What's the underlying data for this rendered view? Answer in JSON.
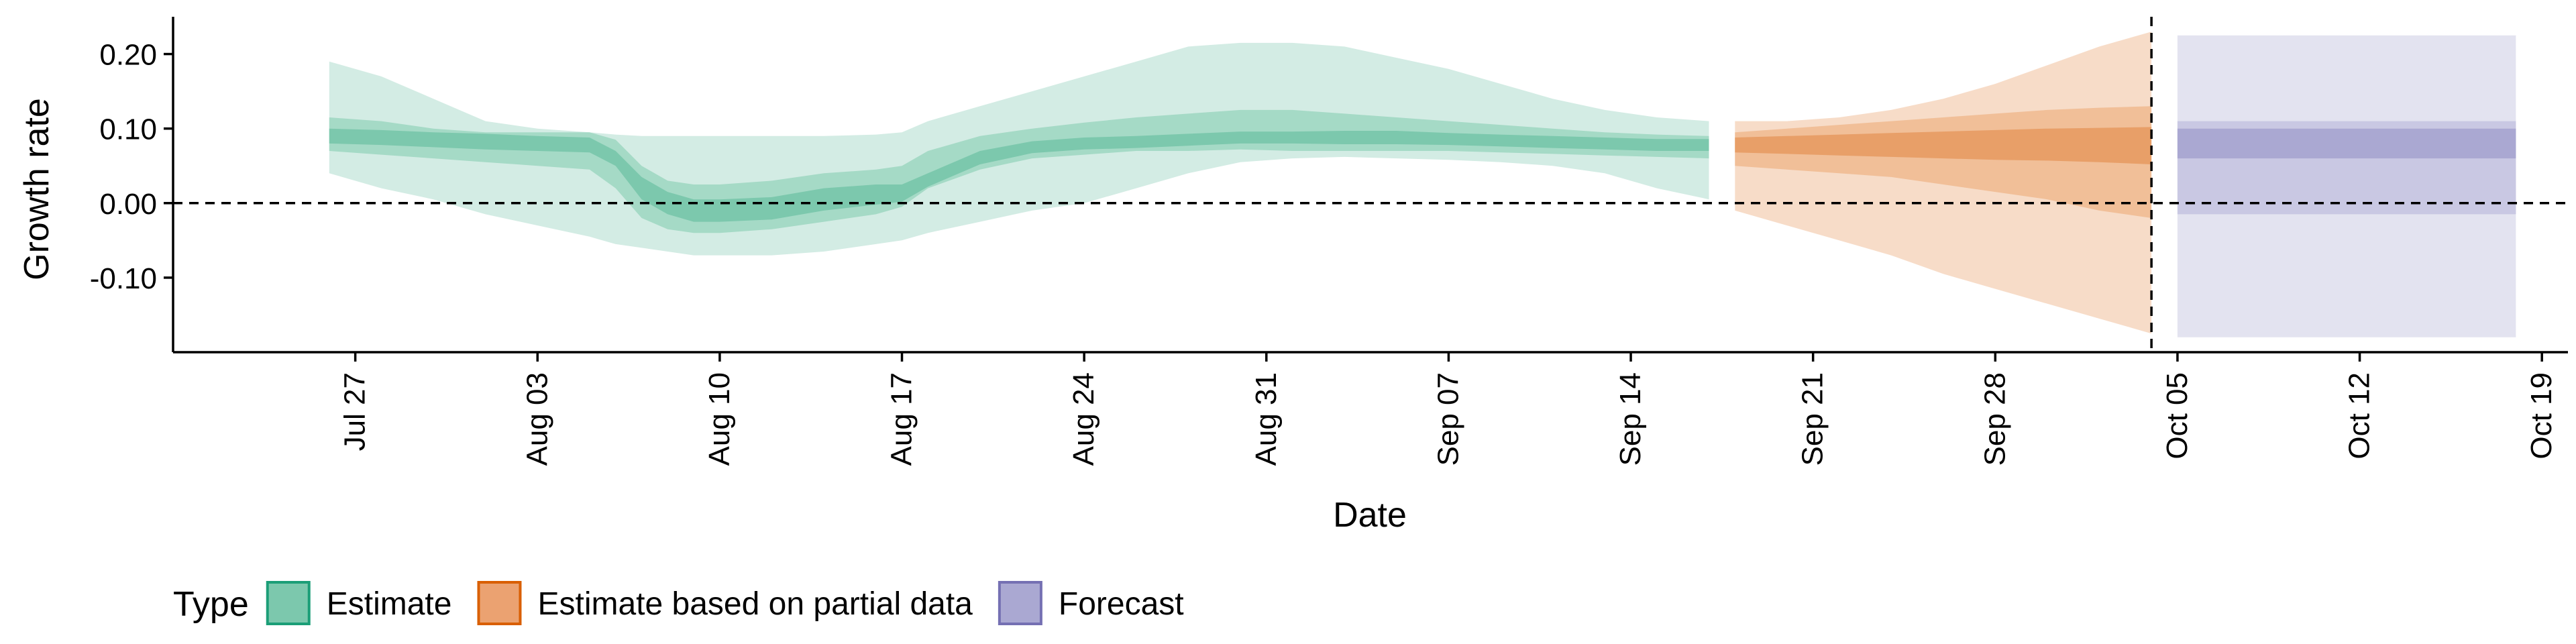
{
  "chart_data": {
    "type": "area",
    "title": "",
    "xlabel": "Date",
    "ylabel": "Growth rate",
    "x_range": [
      "2020-07-20",
      "2020-10-20"
    ],
    "ylim": [
      -0.2,
      0.25
    ],
    "yticks": [
      {
        "value": 0.2,
        "label": "0.20"
      },
      {
        "value": 0.1,
        "label": "0.10"
      },
      {
        "value": 0.0,
        "label": "0.00"
      },
      {
        "value": -0.1,
        "label": "-0.10"
      }
    ],
    "xticks": [
      {
        "date": "2020-07-27",
        "label": "Jul 27"
      },
      {
        "date": "2020-08-03",
        "label": "Aug 03"
      },
      {
        "date": "2020-08-10",
        "label": "Aug 10"
      },
      {
        "date": "2020-08-17",
        "label": "Aug 17"
      },
      {
        "date": "2020-08-24",
        "label": "Aug 24"
      },
      {
        "date": "2020-08-31",
        "label": "Aug 31"
      },
      {
        "date": "2020-09-07",
        "label": "Sep 07"
      },
      {
        "date": "2020-09-14",
        "label": "Sep 14"
      },
      {
        "date": "2020-09-21",
        "label": "Sep 21"
      },
      {
        "date": "2020-09-28",
        "label": "Sep 28"
      },
      {
        "date": "2020-10-05",
        "label": "Oct 05"
      },
      {
        "date": "2020-10-12",
        "label": "Oct 12"
      },
      {
        "date": "2020-10-19",
        "label": "Oct 19"
      }
    ],
    "reference_lines": {
      "horizontal_y": 0.0,
      "vertical_date": "2020-10-04"
    },
    "grid": false,
    "legend": {
      "title": "Type",
      "position": "bottom",
      "entries": [
        {
          "label": "Estimate",
          "fill": "#7cc8ad",
          "stroke": "#1b9e77"
        },
        {
          "label": "Estimate based on partial data",
          "fill": "#eba271",
          "stroke": "#d95f02"
        },
        {
          "label": "Forecast",
          "fill": "#aaa8d2",
          "stroke": "#7570b3"
        }
      ]
    },
    "series": [
      {
        "name": "Estimate",
        "color": "#1b9e77",
        "band_colors": [
          "#d3ece4",
          "#a5dac6",
          "#7cc8ad"
        ],
        "dates": [
          "2020-07-26",
          "2020-07-28",
          "2020-07-30",
          "2020-08-01",
          "2020-08-03",
          "2020-08-05",
          "2020-08-06",
          "2020-08-07",
          "2020-08-08",
          "2020-08-09",
          "2020-08-10",
          "2020-08-12",
          "2020-08-14",
          "2020-08-16",
          "2020-08-17",
          "2020-08-18",
          "2020-08-20",
          "2020-08-22",
          "2020-08-24",
          "2020-08-26",
          "2020-08-28",
          "2020-08-30",
          "2020-09-01",
          "2020-09-03",
          "2020-09-05",
          "2020-09-07",
          "2020-09-09",
          "2020-09-11",
          "2020-09-13",
          "2020-09-15",
          "2020-09-17"
        ],
        "median": [
          0.09,
          0.088,
          0.085,
          0.083,
          0.08,
          0.078,
          0.06,
          0.02,
          0.0,
          -0.01,
          -0.01,
          -0.008,
          0.005,
          0.01,
          0.012,
          0.03,
          0.06,
          0.075,
          0.08,
          0.082,
          0.085,
          0.088,
          0.088,
          0.088,
          0.088,
          0.086,
          0.084,
          0.082,
          0.08,
          0.078,
          0.078
        ],
        "lower_90": [
          0.04,
          0.02,
          0.005,
          -0.015,
          -0.03,
          -0.045,
          -0.055,
          -0.06,
          -0.065,
          -0.07,
          -0.07,
          -0.07,
          -0.065,
          -0.055,
          -0.05,
          -0.04,
          -0.025,
          -0.01,
          0.0,
          0.02,
          0.04,
          0.055,
          0.06,
          0.062,
          0.06,
          0.058,
          0.055,
          0.05,
          0.04,
          0.02,
          0.005
        ],
        "upper_90": [
          0.19,
          0.17,
          0.14,
          0.11,
          0.1,
          0.095,
          0.092,
          0.09,
          0.09,
          0.09,
          0.09,
          0.09,
          0.09,
          0.092,
          0.095,
          0.11,
          0.13,
          0.15,
          0.17,
          0.19,
          0.21,
          0.215,
          0.215,
          0.21,
          0.195,
          0.18,
          0.16,
          0.14,
          0.125,
          0.115,
          0.11
        ],
        "lower_50": [
          0.07,
          0.065,
          0.06,
          0.055,
          0.05,
          0.045,
          0.02,
          -0.02,
          -0.035,
          -0.04,
          -0.04,
          -0.035,
          -0.025,
          -0.015,
          -0.005,
          0.02,
          0.045,
          0.06,
          0.065,
          0.07,
          0.07,
          0.072,
          0.07,
          0.07,
          0.07,
          0.07,
          0.068,
          0.066,
          0.064,
          0.062,
          0.06
        ],
        "upper_50": [
          0.115,
          0.11,
          0.1,
          0.095,
          0.095,
          0.095,
          0.085,
          0.05,
          0.03,
          0.025,
          0.025,
          0.03,
          0.04,
          0.045,
          0.05,
          0.07,
          0.09,
          0.1,
          0.108,
          0.115,
          0.12,
          0.125,
          0.125,
          0.12,
          0.115,
          0.11,
          0.105,
          0.1,
          0.095,
          0.092,
          0.09
        ],
        "lower_20": [
          0.08,
          0.078,
          0.075,
          0.072,
          0.07,
          0.068,
          0.05,
          0.005,
          -0.015,
          -0.025,
          -0.025,
          -0.022,
          -0.01,
          -0.002,
          0.002,
          0.022,
          0.052,
          0.067,
          0.072,
          0.074,
          0.077,
          0.08,
          0.08,
          0.079,
          0.079,
          0.078,
          0.076,
          0.074,
          0.072,
          0.07,
          0.07
        ],
        "upper_20": [
          0.1,
          0.098,
          0.095,
          0.093,
          0.09,
          0.088,
          0.07,
          0.035,
          0.015,
          0.005,
          0.005,
          0.008,
          0.02,
          0.025,
          0.025,
          0.04,
          0.07,
          0.083,
          0.088,
          0.09,
          0.093,
          0.096,
          0.096,
          0.097,
          0.097,
          0.094,
          0.092,
          0.09,
          0.088,
          0.086,
          0.086
        ]
      },
      {
        "name": "Estimate based on partial data",
        "color": "#d95f02",
        "band_colors": [
          "#f7dcc8",
          "#f1bf98",
          "#e89f68"
        ],
        "dates": [
          "2020-09-18",
          "2020-09-20",
          "2020-09-22",
          "2020-09-24",
          "2020-09-26",
          "2020-09-28",
          "2020-09-30",
          "2020-10-02",
          "2020-10-04"
        ],
        "median": [
          0.078,
          0.078,
          0.078,
          0.079,
          0.079,
          0.079,
          0.08,
          0.08,
          0.078
        ],
        "lower_90": [
          -0.01,
          -0.03,
          -0.05,
          -0.07,
          -0.095,
          -0.115,
          -0.135,
          -0.155,
          -0.175
        ],
        "upper_90": [
          0.11,
          0.11,
          0.115,
          0.125,
          0.14,
          0.16,
          0.185,
          0.21,
          0.23
        ],
        "lower_50": [
          0.05,
          0.045,
          0.04,
          0.035,
          0.025,
          0.015,
          0.005,
          -0.01,
          -0.02
        ],
        "upper_50": [
          0.095,
          0.1,
          0.105,
          0.11,
          0.115,
          0.12,
          0.125,
          0.128,
          0.13
        ],
        "lower_20": [
          0.068,
          0.066,
          0.064,
          0.062,
          0.06,
          0.058,
          0.057,
          0.055,
          0.052
        ],
        "upper_20": [
          0.088,
          0.09,
          0.092,
          0.094,
          0.096,
          0.098,
          0.1,
          0.101,
          0.102
        ]
      },
      {
        "name": "Forecast",
        "color": "#7570b3",
        "band_colors": [
          "#e3e3f0",
          "#c9c8e3",
          "#aaa8d2"
        ],
        "dates": [
          "2020-10-05",
          "2020-10-18"
        ],
        "median": [
          0.08,
          0.08
        ],
        "lower_90": [
          -0.18,
          -0.18
        ],
        "upper_90": [
          0.225,
          0.225
        ],
        "lower_50": [
          -0.015,
          -0.015
        ],
        "upper_50": [
          0.11,
          0.11
        ],
        "lower_20": [
          0.06,
          0.06
        ],
        "upper_20": [
          0.1,
          0.1
        ]
      }
    ]
  }
}
